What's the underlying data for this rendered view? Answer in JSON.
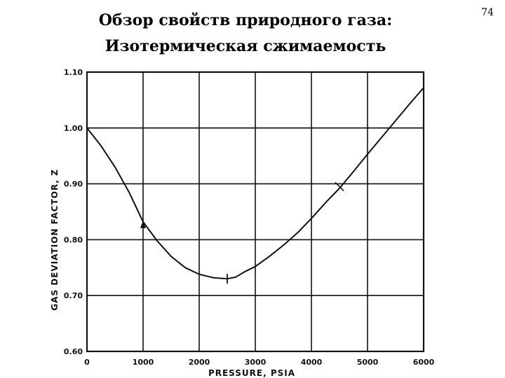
{
  "slide": {
    "title_line1": "Обзор свойств природного газа:",
    "title_line2": "Изотермическая сжимаемость",
    "page_number": "74"
  },
  "chart_data": {
    "type": "line",
    "title": "",
    "xlabel": "PRESSURE, PSIA",
    "ylabel": "GAS DEVIATION FACTOR, Z",
    "xlim": [
      0,
      6000
    ],
    "ylim": [
      0.6,
      1.1
    ],
    "x_ticks": [
      0,
      1000,
      2000,
      3000,
      4000,
      5000,
      6000
    ],
    "x_tick_labels": [
      "0",
      "1000",
      "2000",
      "3000",
      "4000",
      "5000",
      "6000"
    ],
    "y_ticks": [
      0.6,
      0.7,
      0.8,
      0.9,
      1.0,
      1.1
    ],
    "y_tick_labels": [
      "0.60",
      "0.70",
      "0.80",
      "0.90",
      "1.00",
      "1.10"
    ],
    "grid": true,
    "legend": "none",
    "line_color": "#111111",
    "series": [
      {
        "x": [
          0,
          250,
          500,
          750,
          1000,
          1250,
          1500,
          1750,
          2000,
          2250,
          2500,
          2650,
          2800,
          3000,
          3250,
          3500,
          3750,
          4000,
          4250,
          4500,
          4750,
          5000,
          5250,
          5500,
          5750,
          6000
        ],
        "values": [
          1.0,
          0.968,
          0.93,
          0.885,
          0.832,
          0.798,
          0.77,
          0.75,
          0.738,
          0.732,
          0.73,
          0.733,
          0.742,
          0.752,
          0.77,
          0.79,
          0.812,
          0.838,
          0.866,
          0.892,
          0.922,
          0.953,
          0.983,
          1.013,
          1.043,
          1.072
        ]
      }
    ],
    "markers": [
      {
        "x": 1000,
        "y": 0.827,
        "style": "arrow"
      },
      {
        "x": 2500,
        "y": 0.73,
        "style": "vertical-tick"
      },
      {
        "x": 4500,
        "y": 0.895,
        "style": "cross-tick"
      }
    ]
  }
}
